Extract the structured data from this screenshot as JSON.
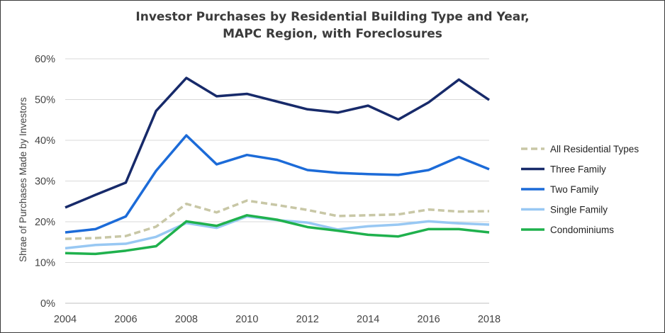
{
  "chart_data": {
    "type": "line",
    "title": [
      "Investor Purchases by Residential Building Type and Year,",
      "MAPC Region, with Foreclosures"
    ],
    "ylabel": "Shrae of Purchases Made by Investors",
    "xlabel": "",
    "x": [
      2004,
      2005,
      2006,
      2007,
      2008,
      2009,
      2010,
      2011,
      2012,
      2013,
      2014,
      2015,
      2016,
      2017,
      2018
    ],
    "x_ticks": [
      "2004",
      "2006",
      "2008",
      "2010",
      "2012",
      "2014",
      "2016",
      "2018"
    ],
    "y_ticks": [
      "0%",
      "10%",
      "20%",
      "30%",
      "40%",
      "50%",
      "60%"
    ],
    "ylim": [
      0,
      60
    ],
    "grid": "horizontal",
    "legend_position": "right",
    "series": [
      {
        "name": "All Residential Types",
        "color": "#c8c7a6",
        "dashed": true,
        "values": [
          15.8,
          16.0,
          16.5,
          18.8,
          24.4,
          22.3,
          25.2,
          24.1,
          22.9,
          21.4,
          21.6,
          21.8,
          23.0,
          22.5,
          22.6
        ]
      },
      {
        "name": "Three Family",
        "color": "#172a6a",
        "dashed": false,
        "values": [
          23.5,
          26.6,
          29.6,
          47.2,
          55.3,
          50.8,
          51.4,
          49.5,
          47.6,
          46.8,
          48.5,
          45.1,
          49.3,
          54.9,
          49.9
        ]
      },
      {
        "name": "Two Family",
        "color": "#1c6bd8",
        "dashed": false,
        "values": [
          17.4,
          18.2,
          21.3,
          32.5,
          41.2,
          34.1,
          36.4,
          35.2,
          32.7,
          32.0,
          31.7,
          31.5,
          32.7,
          35.9,
          32.9
        ]
      },
      {
        "name": "Single Family",
        "color": "#98c8f3",
        "dashed": false,
        "values": [
          13.5,
          14.3,
          14.6,
          16.3,
          19.7,
          18.5,
          21.3,
          20.4,
          19.8,
          18.1,
          18.9,
          19.3,
          20.1,
          19.6,
          19.3
        ]
      },
      {
        "name": "Condominiums",
        "color": "#1fb14d",
        "dashed": false,
        "values": [
          12.3,
          12.1,
          12.9,
          14.0,
          20.1,
          19.0,
          21.6,
          20.5,
          18.7,
          17.8,
          16.8,
          16.4,
          18.2,
          18.2,
          17.4
        ]
      }
    ]
  }
}
